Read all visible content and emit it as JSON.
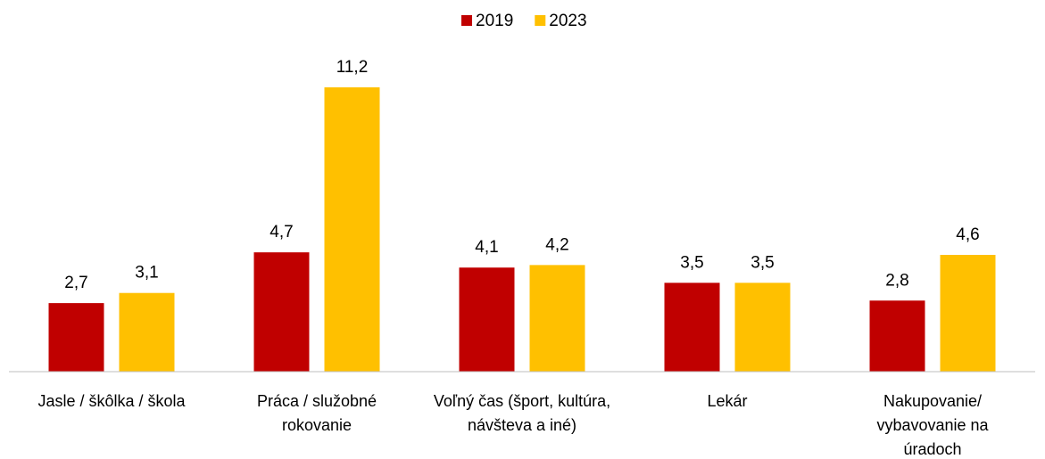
{
  "chart_data": {
    "type": "bar",
    "categories": [
      "Jasle / škôlka / škola",
      "Práca / služobné rokovanie",
      "Voľný čas (šport, kultúra, návšteva a iné)",
      "Lekár",
      "Nakupovanie/ vybavovanie na úradoch"
    ],
    "series": [
      {
        "name": "2019",
        "color": "#c00000",
        "values": [
          2.7,
          4.7,
          4.1,
          3.5,
          2.8
        ],
        "value_labels": [
          "2,7",
          "4,7",
          "4,1",
          "3,5",
          "2,8"
        ]
      },
      {
        "name": "2023",
        "color": "#ffc000",
        "values": [
          3.1,
          11.2,
          4.2,
          3.5,
          4.6
        ],
        "value_labels": [
          "3,1",
          "11,2",
          "4,2",
          "3,5",
          "4,6"
        ]
      }
    ],
    "legend": "top"
  }
}
